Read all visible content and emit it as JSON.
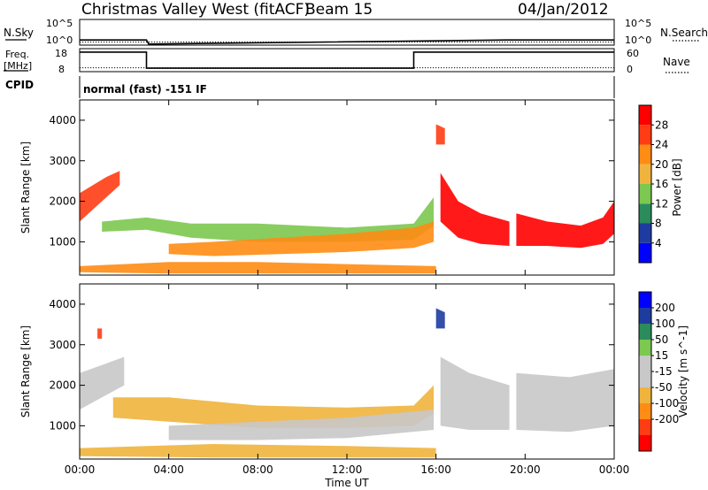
{
  "header": {
    "station": "Christmas Valley West (fitACF)",
    "beam": "Beam 15",
    "date": "04/Jan/2012"
  },
  "strip_labels": {
    "nsky": "N.Sky",
    "nsearch": "N.Search",
    "freq_line1": "Freq.",
    "freq_line2": "[MHz]",
    "nave": "Nave",
    "cpid": "CPID",
    "cpid_text": "normal (fast) -151 IF"
  },
  "colors": {
    "power_scale": [
      "#0000ff",
      "#1e3ca0",
      "#2a8c5a",
      "#7cc850",
      "#f0b43c",
      "#ff8c14",
      "#ff3c14",
      "#ff0000"
    ],
    "velocity_scale": [
      "#0000ff",
      "#1e3ca0",
      "#2a8c5a",
      "#7cc850",
      "#c8c8c8",
      "#c8c8c8",
      "#f0b43c",
      "#ff8c14",
      "#ff3c14",
      "#ff0000"
    ],
    "ground_scatter": "#bebebe"
  },
  "chart_data": [
    {
      "type": "line",
      "name": "noise-strip",
      "left_axis": {
        "label": "N.Sky",
        "ticks": [
          "10^5",
          "10^0"
        ]
      },
      "right_axis": {
        "label": "N.Search",
        "ticks": [
          "10^5",
          "10^0"
        ]
      },
      "ylim_log10": [
        0,
        5
      ],
      "x_hours": [
        0,
        3.0,
        3.1,
        19.2,
        19.3,
        24
      ],
      "nsky_log10": [
        1.0,
        1.0,
        0.2,
        1.0,
        1.0,
        1.0
      ],
      "nsearch_log10": [
        0.6,
        0.6,
        0.6,
        0.6,
        0.6,
        0.6
      ]
    },
    {
      "type": "line",
      "name": "frequency-strip",
      "left_axis": {
        "label": "Freq. [MHz]",
        "ticks": [
          18,
          8
        ]
      },
      "right_axis": {
        "label": "Nave",
        "ticks": [
          60,
          0
        ]
      },
      "freq_steps": [
        {
          "from": 0,
          "to": 3.0,
          "value": 16.5
        },
        {
          "from": 3.0,
          "to": 15.0,
          "value": 9.5
        },
        {
          "from": 15.0,
          "to": 24,
          "value": 16.5
        }
      ],
      "freq_ylim": [
        8,
        18
      ],
      "nave_value": 10,
      "nave_ylim": [
        0,
        60
      ]
    },
    {
      "type": "heatmap",
      "name": "power",
      "ylabel": "Slant Range [km]",
      "colorbar_label": "Power [dB]",
      "colorbar_ticks": [
        4,
        8,
        12,
        16,
        20,
        24,
        28
      ],
      "colorbar_range": [
        0,
        32
      ],
      "ylim": [
        180,
        4500
      ],
      "yticks": [
        1000,
        2000,
        3000,
        4000
      ],
      "xlim_hours": [
        0,
        24
      ],
      "data_gap_hours": [
        19.3,
        19.6
      ],
      "bands": [
        {
          "t": [
            0,
            0.6,
            1.2,
            1.8
          ],
          "low": [
            1500,
            1800,
            2100,
            2400
          ],
          "high": [
            2200,
            2400,
            2600,
            2750
          ],
          "peak_db": 26
        },
        {
          "t": [
            1.0,
            3.0,
            5.0,
            8.0,
            12.0,
            15.0,
            15.9
          ],
          "low": [
            1250,
            1300,
            1100,
            1000,
            1000,
            1050,
            1400
          ],
          "high": [
            1500,
            1600,
            1450,
            1450,
            1350,
            1450,
            2100
          ],
          "peak_db": 14
        },
        {
          "t": [
            4.0,
            6.0,
            9.0,
            12.0,
            15.0,
            15.9
          ],
          "low": [
            700,
            650,
            700,
            750,
            850,
            1000
          ],
          "high": [
            950,
            1000,
            1100,
            1200,
            1350,
            1500
          ],
          "peak_db": 23
        },
        {
          "t": [
            0,
            4.0,
            8.0,
            12.0,
            16.0
          ],
          "low": [
            250,
            220,
            220,
            220,
            220
          ],
          "high": [
            400,
            500,
            500,
            450,
            400
          ],
          "peak_db": 22
        },
        {
          "t": [
            16.2,
            17.0,
            18.0,
            19.3
          ],
          "low": [
            1500,
            1100,
            950,
            900
          ],
          "high": [
            2700,
            2000,
            1700,
            1500
          ],
          "peak_db": 28
        },
        {
          "t": [
            19.6,
            21.0,
            22.5,
            23.5,
            24.0
          ],
          "low": [
            900,
            900,
            850,
            950,
            1200
          ],
          "high": [
            1700,
            1500,
            1400,
            1600,
            2000
          ],
          "peak_db": 28
        },
        {
          "t": [
            16.0,
            16.4
          ],
          "low": [
            3400,
            3400
          ],
          "high": [
            3900,
            3800
          ],
          "peak_db": 25
        }
      ]
    },
    {
      "type": "heatmap",
      "name": "velocity",
      "ylabel": "Slant Range [km]",
      "xlabel": "Time UT",
      "colorbar_label": "Velocity [m s^-1]",
      "colorbar_ticks": [
        200,
        100,
        50,
        15,
        -15,
        -50,
        -100,
        -200
      ],
      "ylim": [
        180,
        4500
      ],
      "yticks": [
        1000,
        2000,
        3000,
        4000
      ],
      "xlim_hours": [
        0,
        24
      ],
      "xticks": [
        "00:00",
        "04:00",
        "08:00",
        "12:00",
        "16:00",
        "20:00",
        "00:00"
      ],
      "xtick_hours": [
        0,
        4,
        8,
        12,
        16,
        20,
        24
      ],
      "data_gap_hours": [
        19.3,
        19.6
      ],
      "bands": [
        {
          "t": [
            0,
            1.0,
            2.0
          ],
          "low": [
            1400,
            1700,
            2000
          ],
          "high": [
            2300,
            2500,
            2700
          ],
          "velocity": 0
        },
        {
          "t": [
            1.5,
            4.0,
            8.0,
            12.0,
            15.0,
            15.9
          ],
          "low": [
            1200,
            1100,
            950,
            950,
            1000,
            1300
          ],
          "high": [
            1700,
            1700,
            1500,
            1450,
            1500,
            2000
          ],
          "velocity": -40
        },
        {
          "t": [
            4.0,
            8.0,
            12.0,
            15.9
          ],
          "low": [
            650,
            650,
            700,
            900
          ],
          "high": [
            1000,
            1100,
            1200,
            1400
          ],
          "velocity": 0
        },
        {
          "t": [
            0,
            6.0,
            12.0,
            16.0
          ],
          "low": [
            250,
            220,
            220,
            220
          ],
          "high": [
            450,
            550,
            500,
            450
          ],
          "velocity": -30
        },
        {
          "t": [
            16.2,
            17.5,
            19.3
          ],
          "low": [
            1000,
            900,
            900
          ],
          "high": [
            2700,
            2300,
            2000
          ],
          "velocity": 0
        },
        {
          "t": [
            19.6,
            22.0,
            24.0
          ],
          "low": [
            900,
            850,
            1000
          ],
          "high": [
            2300,
            2200,
            2400
          ],
          "velocity": 0
        },
        {
          "t": [
            16.0,
            16.4
          ],
          "low": [
            3400,
            3400
          ],
          "high": [
            3900,
            3800
          ],
          "velocity": 150
        },
        {
          "t": [
            0.8,
            1.0
          ],
          "low": [
            3150,
            3150
          ],
          "high": [
            3400,
            3400
          ],
          "velocity": -150
        }
      ]
    }
  ]
}
